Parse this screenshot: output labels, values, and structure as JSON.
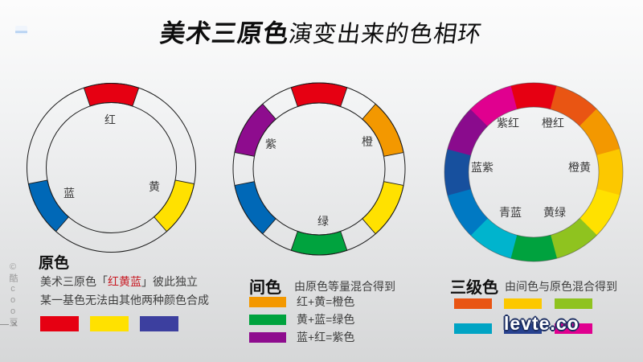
{
  "title": {
    "emphasis": "美术三原色",
    "rest": "演变出来的色相环"
  },
  "wheels": [
    {
      "name": "primary-wheel",
      "half_width": 19,
      "segments": [
        {
          "angle": 0,
          "color": "#e60012"
        },
        {
          "angle": 120,
          "color": "#ffe100"
        },
        {
          "angle": 240,
          "color": "#0068b7"
        }
      ],
      "labels": [
        {
          "text": "红"
        },
        {
          "text": "黄"
        },
        {
          "text": "蓝"
        }
      ]
    },
    {
      "name": "secondary-wheel",
      "half_width": 19,
      "segments": [
        {
          "angle": 0,
          "color": "#e60012"
        },
        {
          "angle": 60,
          "color": "#f39800"
        },
        {
          "angle": 120,
          "color": "#ffe100"
        },
        {
          "angle": 180,
          "color": "#00a33e"
        },
        {
          "angle": 240,
          "color": "#0068b7"
        },
        {
          "angle": 300,
          "color": "#8e0c8e"
        }
      ],
      "labels": [
        {
          "text": "紫"
        },
        {
          "text": "橙"
        },
        {
          "text": "绿"
        }
      ]
    },
    {
      "name": "tertiary-wheel",
      "half_width": 15.15,
      "segments": [
        {
          "angle": 0,
          "color": "#e60012"
        },
        {
          "angle": 30,
          "color": "#e95513"
        },
        {
          "angle": 60,
          "color": "#f39800"
        },
        {
          "angle": 90,
          "color": "#fcc800"
        },
        {
          "angle": 120,
          "color": "#ffe100"
        },
        {
          "angle": 150,
          "color": "#8fc31f"
        },
        {
          "angle": 180,
          "color": "#00a23e"
        },
        {
          "angle": 210,
          "color": "#00b4cd"
        },
        {
          "angle": 240,
          "color": "#0079c3"
        },
        {
          "angle": 270,
          "color": "#17509e"
        },
        {
          "angle": 300,
          "color": "#8a0b8d"
        },
        {
          "angle": 330,
          "color": "#e0008f"
        }
      ],
      "labels": [
        {
          "text": "紫红"
        },
        {
          "text": "橙红"
        },
        {
          "text": "蓝紫"
        },
        {
          "text": "橙黄"
        },
        {
          "text": "青蓝"
        },
        {
          "text": "黄绿"
        }
      ]
    }
  ],
  "sections": {
    "primary": {
      "heading": "原色",
      "line1_pre": "美术三原色「",
      "line1_colored": "红黄蓝",
      "line1_post": "」彼此独立",
      "line2": "某一基色无法由其他两种颜色合成",
      "accent_color": "#c81821",
      "swatches": [
        "#e60012",
        "#ffe100",
        "#3c3f9f"
      ]
    },
    "secondary": {
      "heading": "间色",
      "desc": "由原色等量混合得到",
      "rows": [
        {
          "color": "#f39800",
          "label": "红+黄=橙色"
        },
        {
          "color": "#00a33e",
          "label": "黄+蓝=绿色"
        },
        {
          "color": "#8e0c8e",
          "label": "蓝+红=紫色"
        }
      ]
    },
    "tertiary": {
      "heading": "三级色",
      "desc": "由间色与原色混合得到",
      "row1": [
        "#e95513",
        "#fcc800",
        "#8fc31f"
      ],
      "row2": [
        "#00a4c4",
        "#27418f",
        "#e0008f"
      ]
    }
  },
  "watermarks": {
    "vertical": "©酷coo豆",
    "window_controls": "—×",
    "site": "levte.co"
  }
}
